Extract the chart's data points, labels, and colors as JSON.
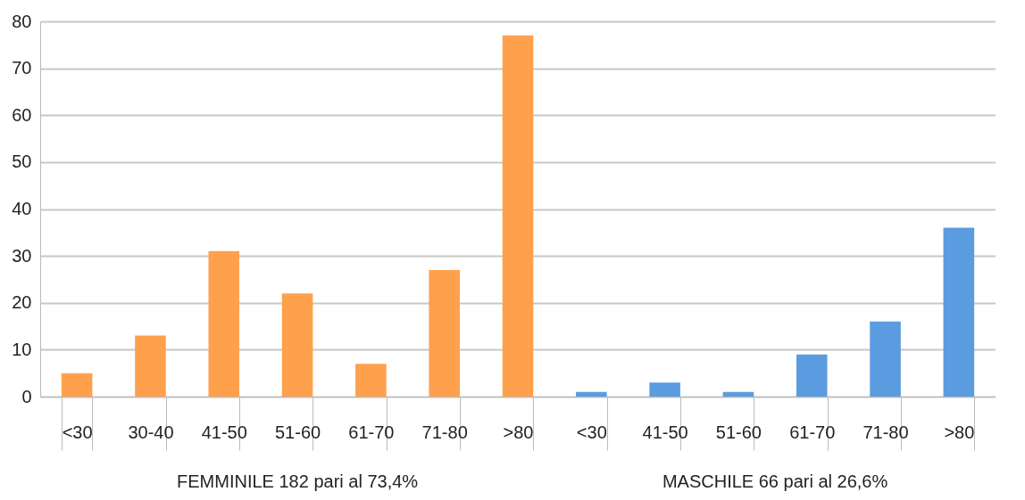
{
  "chart_data": {
    "type": "bar",
    "categories": [
      "<30",
      "30-40",
      "41-50",
      "51-60",
      "61-70",
      "71-80",
      ">80",
      "<30",
      "41-50",
      "51-60",
      "61-70",
      "71-80",
      ">80"
    ],
    "series": [
      {
        "name": "FEMMINILE 182 pari al 73,4%",
        "color": "#ffa04d",
        "values": [
          5,
          13,
          31,
          22,
          7,
          27,
          77,
          null,
          null,
          null,
          null,
          null,
          null
        ]
      },
      {
        "name": "MASCHILE 66 pari al 26,6%",
        "color": "#5b9be0",
        "values": [
          null,
          null,
          null,
          null,
          null,
          null,
          null,
          1,
          3,
          1,
          9,
          16,
          36
        ]
      }
    ],
    "ylim": [
      0,
      80
    ],
    "yticks": [
      0,
      10,
      20,
      30,
      40,
      50,
      60,
      70,
      80
    ],
    "grid": "y"
  }
}
